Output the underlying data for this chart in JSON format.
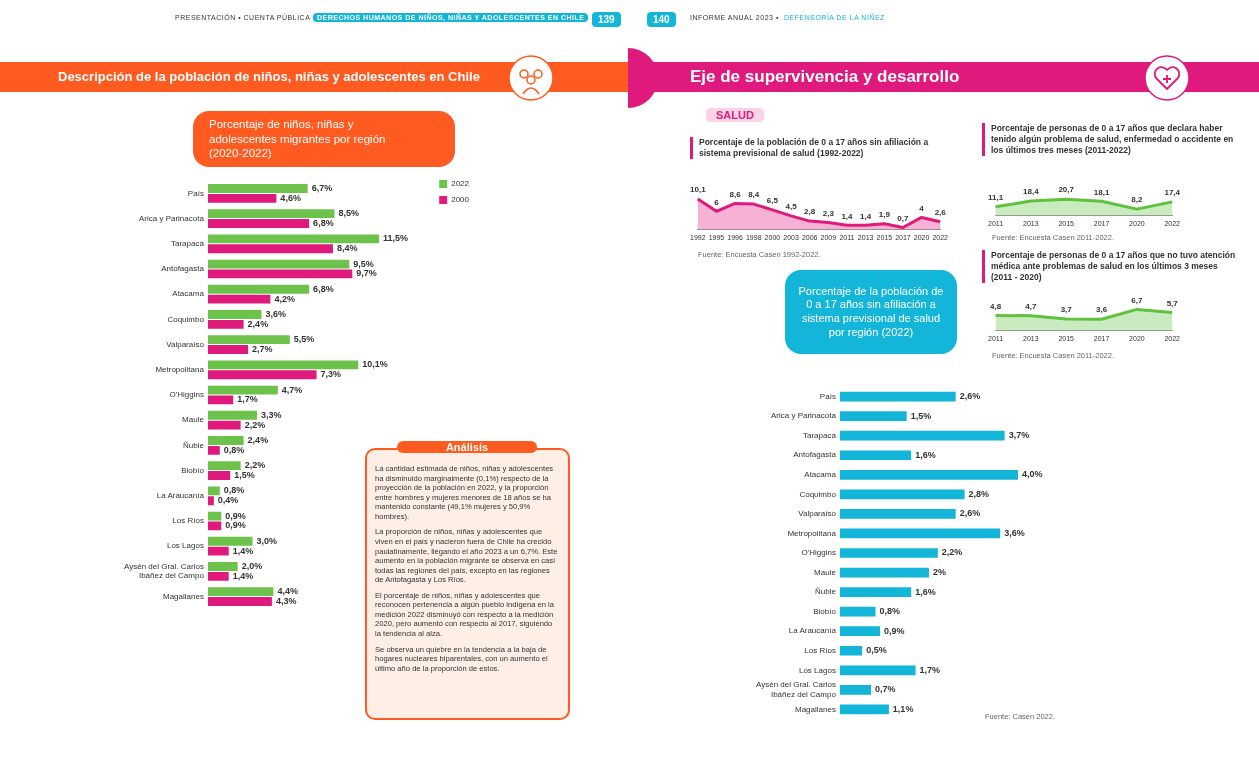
{
  "chart_data": [
    {
      "type": "other",
      "annotations": [
        "PRESENTACIÓN • CUENTA PÚBLICA •",
        "DERECHOS HUMANOS DE NIÑOS, NIÑAS Y ADOLESCENTES EN CHILE",
        "139",
        "140",
        "INFORME ANUAL 2023 •",
        "DEFENSORÍA DE LA NIÑEZ",
        "Descripción de la población de niños, niñas y adolescentes en Chile",
        "Eje de supervivencia y desarrollo",
        "SALUD"
      ]
    },
    {
      "type": "bar",
      "orientation": "horizontal",
      "title": "Porcentaje de niños, niñas y adolescentes migrantes por región (2020-2022)",
      "categories": [
        "País",
        "Arica y Parinacota",
        "Tarapacá",
        "Antofagasta",
        "Atacama",
        "Coquimbo",
        "Valparaíso",
        "Metropolitana",
        "O'Higgins",
        "Maule",
        "Ñuble",
        "Biobío",
        "La Araucanía",
        "Los Ríos",
        "Los Lagos",
        "Aysén del Gral. Carlos Ibáñez del Campo",
        "Magallanes"
      ],
      "tick_labels": "y",
      "legend": "top right",
      "series": [
        {
          "name": "2022",
          "color": "#6cc24a",
          "values": [
            6.7,
            8.5,
            11.5,
            9.5,
            6.8,
            3.6,
            5.5,
            10.1,
            4.7,
            3.3,
            2.4,
            2.2,
            0.8,
            0.9,
            3.0,
            2.0,
            4.4
          ],
          "value_labels": [
            "6,7%",
            "8,5%",
            "11,5%",
            "9,5%",
            "6,8%",
            "3,6%",
            "5,5%",
            "10,1%",
            "4,7%",
            "3,3%",
            "2,4%",
            "2,2%",
            "0,8%",
            "0,9%",
            "3,0%",
            "2,0%",
            "4,4%"
          ]
        },
        {
          "name": "2000",
          "color": "#e0197d",
          "values": [
            4.6,
            6.8,
            8.4,
            9.7,
            4.2,
            2.4,
            2.7,
            7.3,
            1.7,
            2.2,
            0.8,
            1.5,
            0.4,
            0.9,
            1.4,
            1.4,
            4.3
          ],
          "value_labels": [
            "4,6%",
            "6,8%",
            "8,4%",
            "9,7%",
            "4,2%",
            "2,4%",
            "2,7%",
            "7,3%",
            "1,7%",
            "2,2%",
            "0,8%",
            "1,5%",
            "0,4%",
            "0,9%",
            "1,4%",
            "1,4%",
            "4,3%"
          ]
        }
      ]
    },
    {
      "type": "area",
      "title": "Porcentaje de la población de 0 a 17 años sin afiliación a sistema previsional de salud (1992-2022)",
      "categories": [
        "1992",
        "1995",
        "1996",
        "1998",
        "2000",
        "2003",
        "2006",
        "2009",
        "2011",
        "2013",
        "2015",
        "2017",
        "2020",
        "2022"
      ],
      "tick_labels": "x",
      "color": "#e0197d",
      "values": [
        10.1,
        6,
        8.6,
        8.4,
        6.5,
        4.5,
        2.8,
        2.3,
        1.4,
        1.4,
        1.9,
        0.7,
        4,
        2.6
      ],
      "value_labels": [
        "10,1",
        "6",
        "8,6",
        "8,4",
        "6,5",
        "4,5",
        "2,8",
        "2,3",
        "1,4",
        "1,4",
        "1,9",
        "0,7",
        "4",
        "2,6"
      ],
      "annotations": [
        "Fuente: Encuesta Casen 1992-2022."
      ]
    },
    {
      "type": "area",
      "title": "Porcentaje de personas de 0 a 17 años que declara haber tenido algún problema de salud, enfermedad o accidente en los últimos tres meses (2011-2022)",
      "categories": [
        "2011",
        "2013",
        "2015",
        "2017",
        "2020",
        "2022"
      ],
      "tick_labels": "x",
      "color": "#5fc23f",
      "values": [
        11.1,
        18.4,
        20.7,
        18.1,
        8.2,
        17.4
      ],
      "value_labels": [
        "11,1",
        "18,4",
        "20,7",
        "18,1",
        "8,2",
        "17,4"
      ],
      "annotations": [
        "Fuente: Encuesta Casen 2011-2022."
      ]
    },
    {
      "type": "area",
      "title": "Porcentaje de personas de 0 a 17 años que no tuvo atención médica ante problemas de salud en los últimos 3 meses (2011 - 2020)",
      "categories": [
        "2011",
        "2013",
        "2015",
        "2017",
        "2020",
        "2022"
      ],
      "tick_labels": "x",
      "color": "#5fc23f",
      "values": [
        4.8,
        4.7,
        3.7,
        3.6,
        6.7,
        5.7
      ],
      "value_labels": [
        "4,8",
        "4,7",
        "3,7",
        "3,6",
        "6,7",
        "5,7"
      ],
      "annotations": [
        "Fuente: Encuesta Casen 2011-2022."
      ]
    },
    {
      "type": "bar",
      "orientation": "horizontal",
      "title": "Porcentaje de la población de 0 a 17 años sin afiliación a sistema previsional de salud por región (2022)",
      "categories": [
        "País",
        "Arica y Parinacota",
        "Tarapacá",
        "Antofagasta",
        "Atacama",
        "Coquimbo",
        "Valparaíso",
        "Metropolitana",
        "O'Higgins",
        "Maule",
        "Ñuble",
        "Biobío",
        "La Araucanía",
        "Los Ríos",
        "Los Lagos",
        "Aysén del Gral. Carlos Ibáñez del Campo",
        "Magallanes"
      ],
      "tick_labels": "y",
      "color": "#13b5d8",
      "values": [
        2.6,
        1.5,
        3.7,
        1.6,
        4.0,
        2.8,
        2.6,
        3.6,
        2.2,
        2,
        1.6,
        0.8,
        0.9,
        0.5,
        1.7,
        0.7,
        1.1
      ],
      "value_labels": [
        "2,6%",
        "1,5%",
        "3,7%",
        "1,6%",
        "4,0%",
        "2,8%",
        "2,6%",
        "3,6%",
        "2,2%",
        "2%",
        "1,6%",
        "0,8%",
        "0,9%",
        "0,5%",
        "1,7%",
        "0,7%",
        "1,1%"
      ],
      "annotations": [
        "Fuente: Casen 2022."
      ]
    },
    {
      "type": "other",
      "title": "Análisis",
      "annotations": [
        "La cantidad estimada de niños, niñas y adolescentes ha disminuido marginalmente (0,1%) respecto de la proyección de la población en 2022, y la proporción entre hombres y mujeres menores de 18 años se ha mantenido constante (49,1% mujeres y 50,9% hombres).",
        "La proporción de niños, niñas y adolescentes que viven en el país y nacieron fuera de Chile ha crecido paulatinamente, llegando el año 2023 a un 6,7%. Este aumento en la población migrante se observa en casi todas las regiones del país, excepto en las regiones de Antofagasta y Los Ríos.",
        "El porcentaje de niños, niñas y adolescentes que reconocen pertenencia a algún pueblo indígena en la medición 2022 disminuyó con respecto a la medición 2020, pero aumentó con respecto al 2017, siguiendo la tendencia al alza.",
        "Se observa un quiebre en la tendencia a la baja de hogares nucleares biparentales, con un aumento el último año de la proporción de estos."
      ]
    }
  ]
}
